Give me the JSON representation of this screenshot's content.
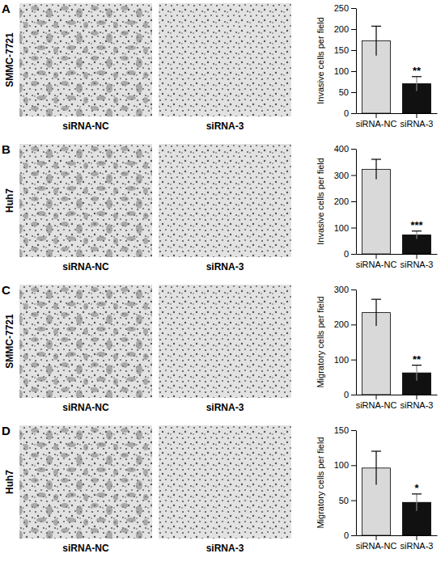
{
  "chart_data": [
    {
      "type": "bar",
      "panel_label": "A",
      "row_label": "SMMC-7721",
      "image_labels": [
        "siRNA-NC",
        "siRNA-3"
      ],
      "y_label": "Invasive cells per field",
      "categories": [
        "siRNA-NC",
        "siRNA-3"
      ],
      "values": [
        172,
        70
      ],
      "errors": [
        35,
        17
      ],
      "colors": [
        "#d9d9d9",
        "#111111"
      ],
      "ylim": [
        0,
        250
      ],
      "yticks": [
        0,
        50,
        100,
        150,
        200,
        250
      ],
      "annotations": [
        {
          "text": "**",
          "category": 1
        }
      ]
    },
    {
      "type": "bar",
      "panel_label": "B",
      "row_label": "Huh7",
      "image_labels": [
        "siRNA-NC",
        "siRNA-3"
      ],
      "y_label": "Invasive cells per field",
      "categories": [
        "siRNA-NC",
        "siRNA-3"
      ],
      "values": [
        322,
        72
      ],
      "errors": [
        38,
        15
      ],
      "colors": [
        "#d9d9d9",
        "#111111"
      ],
      "ylim": [
        0,
        400
      ],
      "yticks": [
        0,
        100,
        200,
        300,
        400
      ],
      "annotations": [
        {
          "text": "***",
          "category": 1
        }
      ]
    },
    {
      "type": "bar",
      "panel_label": "C",
      "row_label": "SMMC-7721",
      "image_labels": [
        "siRNA-NC",
        "siRNA-3"
      ],
      "y_label": "Migratory cells per field",
      "categories": [
        "siRNA-NC",
        "siRNA-3"
      ],
      "values": [
        234,
        62
      ],
      "errors": [
        38,
        22
      ],
      "colors": [
        "#d9d9d9",
        "#111111"
      ],
      "ylim": [
        0,
        300
      ],
      "yticks": [
        0,
        100,
        200,
        300
      ],
      "annotations": [
        {
          "text": "**",
          "category": 1
        }
      ]
    },
    {
      "type": "bar",
      "panel_label": "D",
      "row_label": "Huh7",
      "image_labels": [
        "siRNA-NC",
        "siRNA-3"
      ],
      "y_label": "Migratory cells per field",
      "categories": [
        "siRNA-NC",
        "siRNA-3"
      ],
      "values": [
        96,
        47
      ],
      "errors": [
        24,
        12
      ],
      "colors": [
        "#d9d9d9",
        "#111111"
      ],
      "ylim": [
        0,
        150
      ],
      "yticks": [
        0,
        50,
        100,
        150
      ],
      "annotations": [
        {
          "text": "*",
          "category": 1
        }
      ]
    }
  ]
}
